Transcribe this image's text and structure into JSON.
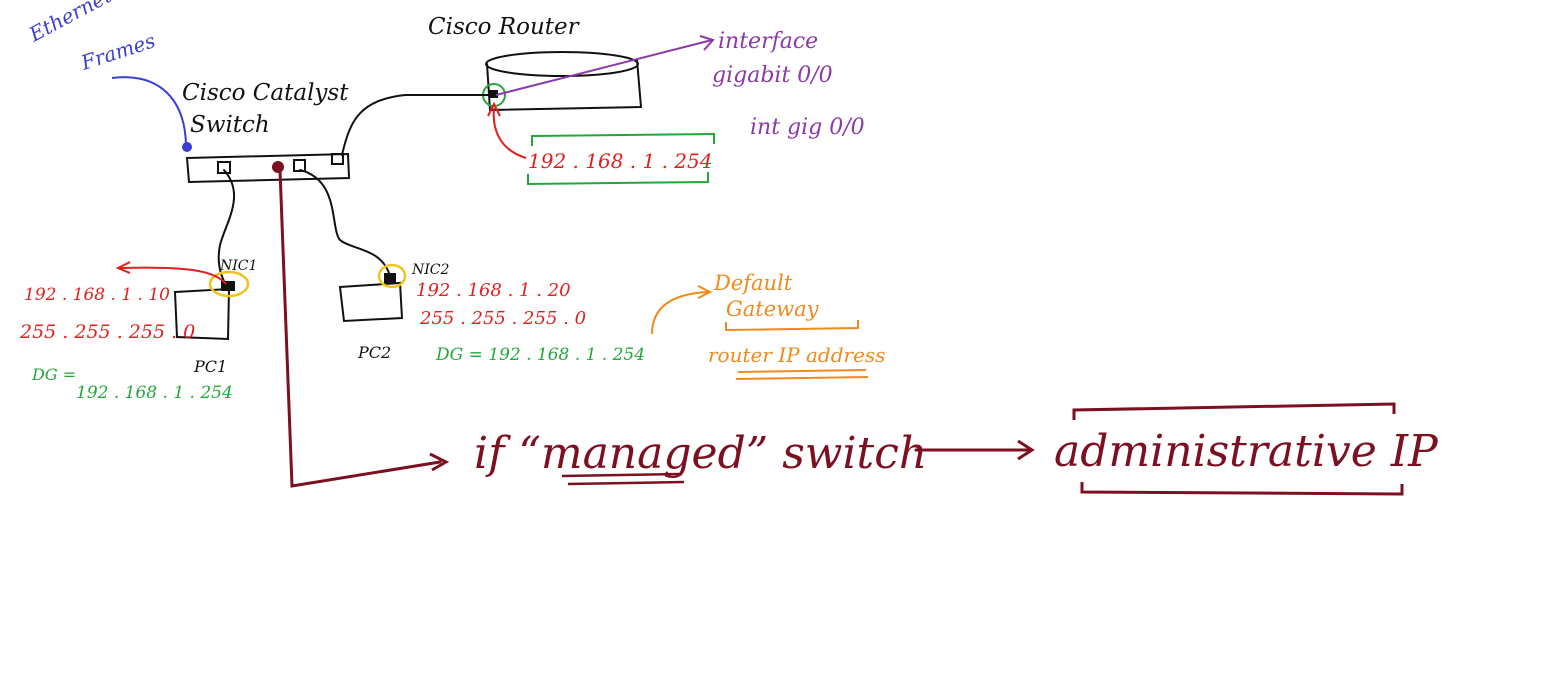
{
  "colors": {
    "black": "#111111",
    "blue": "#3a3fd0",
    "purple": "#8b3aa8",
    "red": "#e0201f",
    "green": "#22a83a",
    "orange": "#f08a1c",
    "maroon": "#7d1020",
    "yellow": "#f2c41a"
  },
  "labels": {
    "ethernet": "Ethernet",
    "frames": "Frames",
    "switch_line1": "Cisco Catalyst",
    "switch_line2": "Switch",
    "router": "Cisco Router",
    "interface_line1": "interface",
    "interface_line2": "gigabit 0/0",
    "int_short": "int gig 0/0",
    "router_ip": "192 . 168 . 1 . 254",
    "nic1": "NIC1",
    "nic2": "NIC2",
    "pc1": "PC1",
    "pc2": "PC2",
    "pc1_ip": "192 . 168 . 1 . 10",
    "pc1_mask": "255 . 255 . 255 . 0",
    "pc1_dg_label": "DG =",
    "pc1_dg_value": "192 . 168 . 1 . 254",
    "pc2_ip": "192 . 168 . 1 . 20",
    "pc2_mask": "255 . 255 . 255 . 0",
    "pc2_dg": "DG =   192 . 168 . 1 . 254",
    "default_gateway_line1": "Default",
    "default_gateway_line2": "Gateway",
    "router_ip_address": "router IP address",
    "managed_prefix": "if “",
    "managed_word": "managed",
    "managed_suffix": "” switch",
    "administrative_ip": "administrative  IP"
  }
}
